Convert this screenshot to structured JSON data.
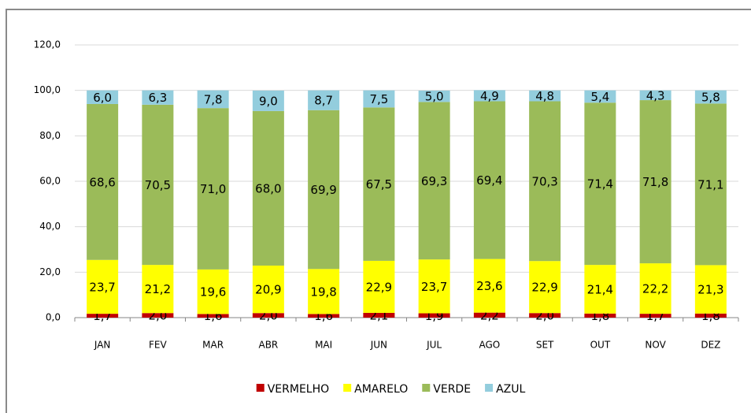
{
  "chart_data": {
    "type": "stacked_bar",
    "categories": [
      "JAN",
      "FEV",
      "MAR",
      "ABR",
      "MAI",
      "JUN",
      "JUL",
      "AGO",
      "SET",
      "OUT",
      "NOV",
      "DEZ"
    ],
    "series": [
      {
        "name": "VERMELHO",
        "color": "#c00000",
        "values": [
          1.7,
          2.0,
          1.6,
          2.0,
          1.6,
          2.1,
          1.9,
          2.2,
          2.0,
          1.8,
          1.7,
          1.8
        ],
        "value_labels": [
          "1,7",
          "2,0",
          "1,6",
          "2,0",
          "1,6",
          "2,1",
          "1,9",
          "2,2",
          "2,0",
          "1,8",
          "1,7",
          "1,8"
        ]
      },
      {
        "name": "AMARELO",
        "color": "#ffff00",
        "values": [
          23.7,
          21.2,
          19.6,
          20.9,
          19.8,
          22.9,
          23.7,
          23.6,
          22.9,
          21.4,
          22.2,
          21.3
        ],
        "value_labels": [
          "23,7",
          "21,2",
          "19,6",
          "20,9",
          "19,8",
          "22,9",
          "23,7",
          "23,6",
          "22,9",
          "21,4",
          "22,2",
          "21,3"
        ]
      },
      {
        "name": "VERDE",
        "color": "#9bbb59",
        "values": [
          68.6,
          70.5,
          71.0,
          68.0,
          69.9,
          67.5,
          69.3,
          69.4,
          70.3,
          71.4,
          71.8,
          71.1
        ],
        "value_labels": [
          "68,6",
          "70,5",
          "71,0",
          "68,0",
          "69,9",
          "67,5",
          "69,3",
          "69,4",
          "70,3",
          "71,4",
          "71,8",
          "71,1"
        ]
      },
      {
        "name": "AZUL",
        "color": "#93cddd",
        "values": [
          6.0,
          6.3,
          7.8,
          9.0,
          8.7,
          7.5,
          5.0,
          4.9,
          4.8,
          5.4,
          4.3,
          5.8
        ],
        "value_labels": [
          "6,0",
          "6,3",
          "7,8",
          "9,0",
          "8,7",
          "7,5",
          "5,0",
          "4,9",
          "4,8",
          "5,4",
          "4,3",
          "5,8"
        ]
      }
    ],
    "ylim": [
      0,
      120
    ],
    "yticks": [
      {
        "value": 0,
        "label": "0,0"
      },
      {
        "value": 20,
        "label": "20,0"
      },
      {
        "value": 40,
        "label": "40,0"
      },
      {
        "value": 60,
        "label": "60,0"
      },
      {
        "value": 80,
        "label": "80,0"
      },
      {
        "value": 100,
        "label": "100,0"
      },
      {
        "value": 120,
        "label": "120,0"
      }
    ],
    "grid": true,
    "legend": "bottom"
  }
}
